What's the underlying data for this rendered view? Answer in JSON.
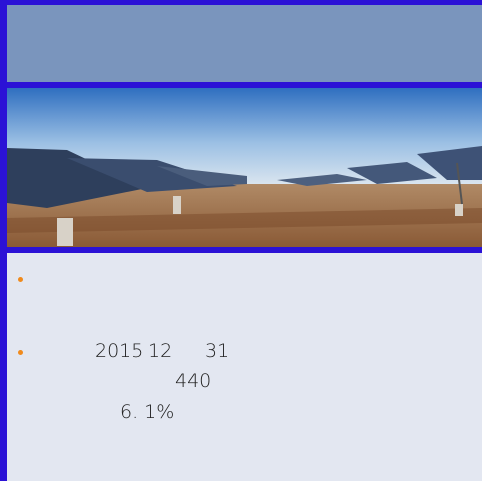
{
  "bullets": [
    {
      "lines": [
        [
          "2015",
          "12",
          "31"
        ],
        [
          "440"
        ],
        [
          "6. 1%"
        ]
      ]
    }
  ]
}
